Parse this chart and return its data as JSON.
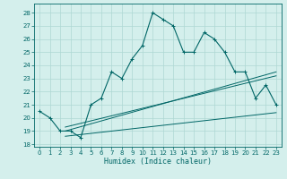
{
  "xlabel": "Humidex (Indice chaleur)",
  "xlim": [
    -0.5,
    23.5
  ],
  "ylim": [
    17.8,
    28.7
  ],
  "yticks": [
    18,
    19,
    20,
    21,
    22,
    23,
    24,
    25,
    26,
    27,
    28
  ],
  "xticks": [
    0,
    1,
    2,
    3,
    4,
    5,
    6,
    7,
    8,
    9,
    10,
    11,
    12,
    13,
    14,
    15,
    16,
    17,
    18,
    19,
    20,
    21,
    22,
    23
  ],
  "bg_color": "#d4efec",
  "grid_color": "#aed8d3",
  "line_color": "#006666",
  "main_series": [
    20.5,
    20.0,
    19.0,
    19.0,
    18.5,
    21.0,
    21.5,
    23.5,
    23.0,
    24.5,
    25.5,
    28.0,
    27.5,
    27.0,
    25.0,
    25.0,
    26.5,
    26.0,
    25.0,
    23.5,
    23.5,
    21.5,
    22.5,
    21.0
  ],
  "ref_lines": [
    {
      "x0": 2.5,
      "y0": 19.3,
      "x1": 23,
      "y1": 23.2
    },
    {
      "x0": 2.5,
      "y0": 19.0,
      "x1": 23,
      "y1": 23.5
    },
    {
      "x0": 2.5,
      "y0": 18.6,
      "x1": 23,
      "y1": 20.4
    }
  ]
}
